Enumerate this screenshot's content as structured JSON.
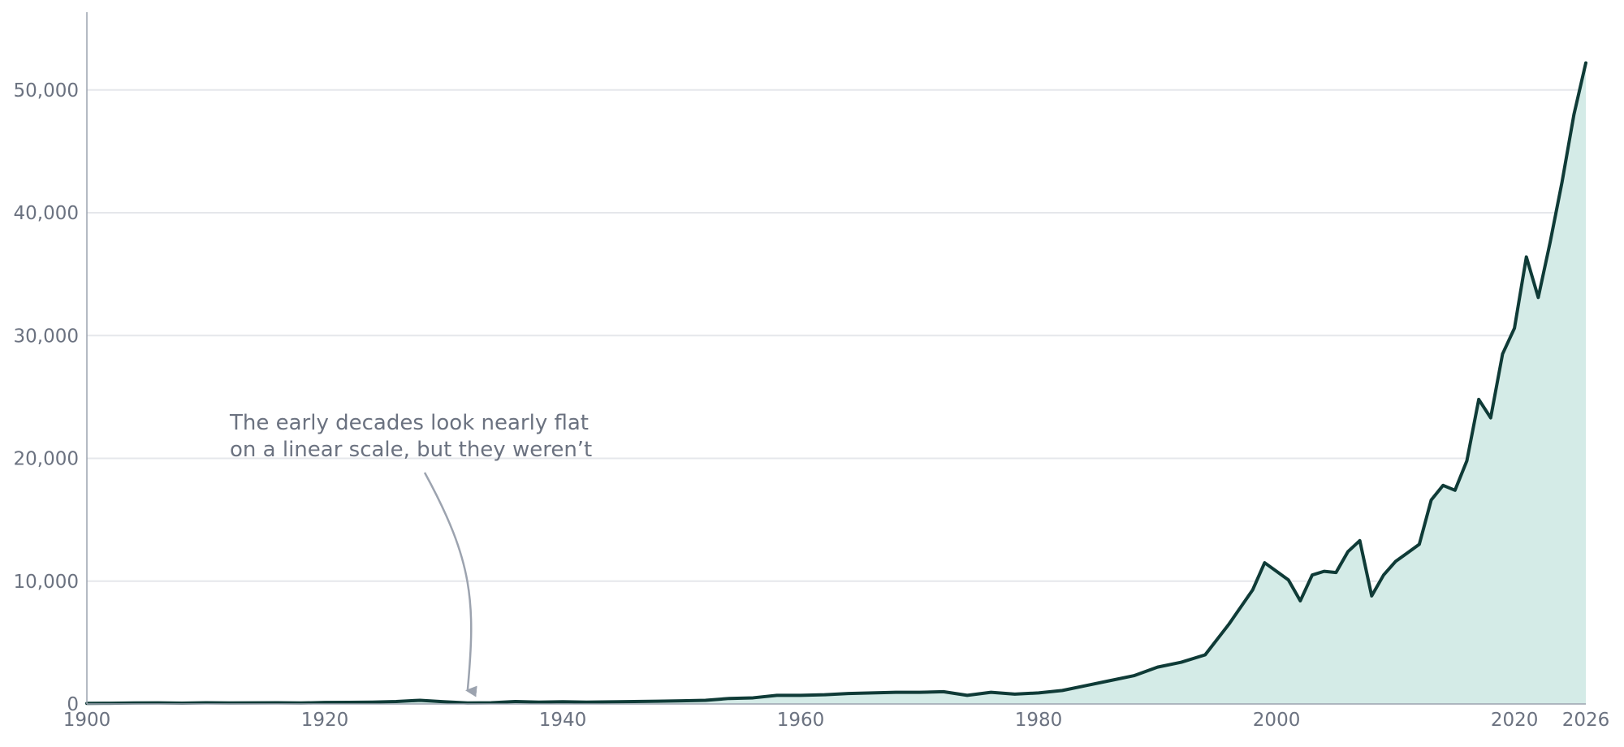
{
  "chart_data": {
    "type": "area",
    "title": "",
    "xlabel": "",
    "ylabel": "",
    "xlim": [
      1900,
      2026
    ],
    "ylim": [
      0,
      56000
    ],
    "grid": true,
    "x_ticks": [
      1900,
      1920,
      1940,
      1960,
      1980,
      2000,
      2020,
      2026
    ],
    "x_tick_labels": [
      "1900",
      "1920",
      "1940",
      "1960",
      "1980",
      "2000",
      "2020",
      "2026"
    ],
    "y_ticks": [
      0,
      10000,
      20000,
      30000,
      40000,
      50000
    ],
    "y_tick_labels": [
      "0",
      "10,000",
      "20,000",
      "30,000",
      "40,000",
      "50,000"
    ],
    "colors": {
      "line": "#0f3b37",
      "fill": "#d4ebe7",
      "annotation": "#9ca3af"
    },
    "series": [
      {
        "x": [
          1900,
          1902,
          1904,
          1906,
          1908,
          1910,
          1912,
          1914,
          1916,
          1918,
          1920,
          1922,
          1924,
          1926,
          1928,
          1930,
          1932,
          1934,
          1936,
          1938,
          1940,
          1942,
          1944,
          1946,
          1948,
          1950,
          1952,
          1954,
          1956,
          1958,
          1960,
          1962,
          1964,
          1966,
          1968,
          1970,
          1972,
          1974,
          1976,
          1978,
          1980,
          1982,
          1984,
          1986,
          1988,
          1990,
          1992,
          1994,
          1996,
          1998,
          1999,
          2000,
          2001,
          2002,
          2003,
          2004,
          2005,
          2006,
          2007,
          2008,
          2009,
          2010,
          2011,
          2012,
          2013,
          2014,
          2015,
          2016,
          2017,
          2018,
          2019,
          2020,
          2021,
          2022,
          2023,
          2024,
          2025,
          2026
        ],
        "values": [
          50,
          60,
          80,
          90,
          70,
          100,
          80,
          90,
          100,
          80,
          120,
          130,
          150,
          200,
          300,
          180,
          80,
          100,
          200,
          150,
          180,
          150,
          170,
          200,
          220,
          260,
          300,
          450,
          500,
          700,
          700,
          750,
          850,
          900,
          950,
          950,
          1000,
          700,
          950,
          800,
          900,
          1100,
          1500,
          1900,
          2300,
          3000,
          3400,
          4000,
          6500,
          9300,
          11500,
          10800,
          10100,
          8400,
          10500,
          10800,
          10700,
          12400,
          13300,
          8800,
          10500,
          11600,
          12300,
          13000,
          16600,
          17800,
          17400,
          19800,
          24800,
          23300,
          28500,
          30600,
          36400,
          33100,
          37600,
          42500,
          48000,
          52200
        ]
      }
    ],
    "annotations": [
      {
        "lines": [
          "The early decades look nearly flat",
          "on a linear scale, but they weren’t"
        ],
        "target_x": 1932,
        "target_y": 300
      }
    ]
  }
}
